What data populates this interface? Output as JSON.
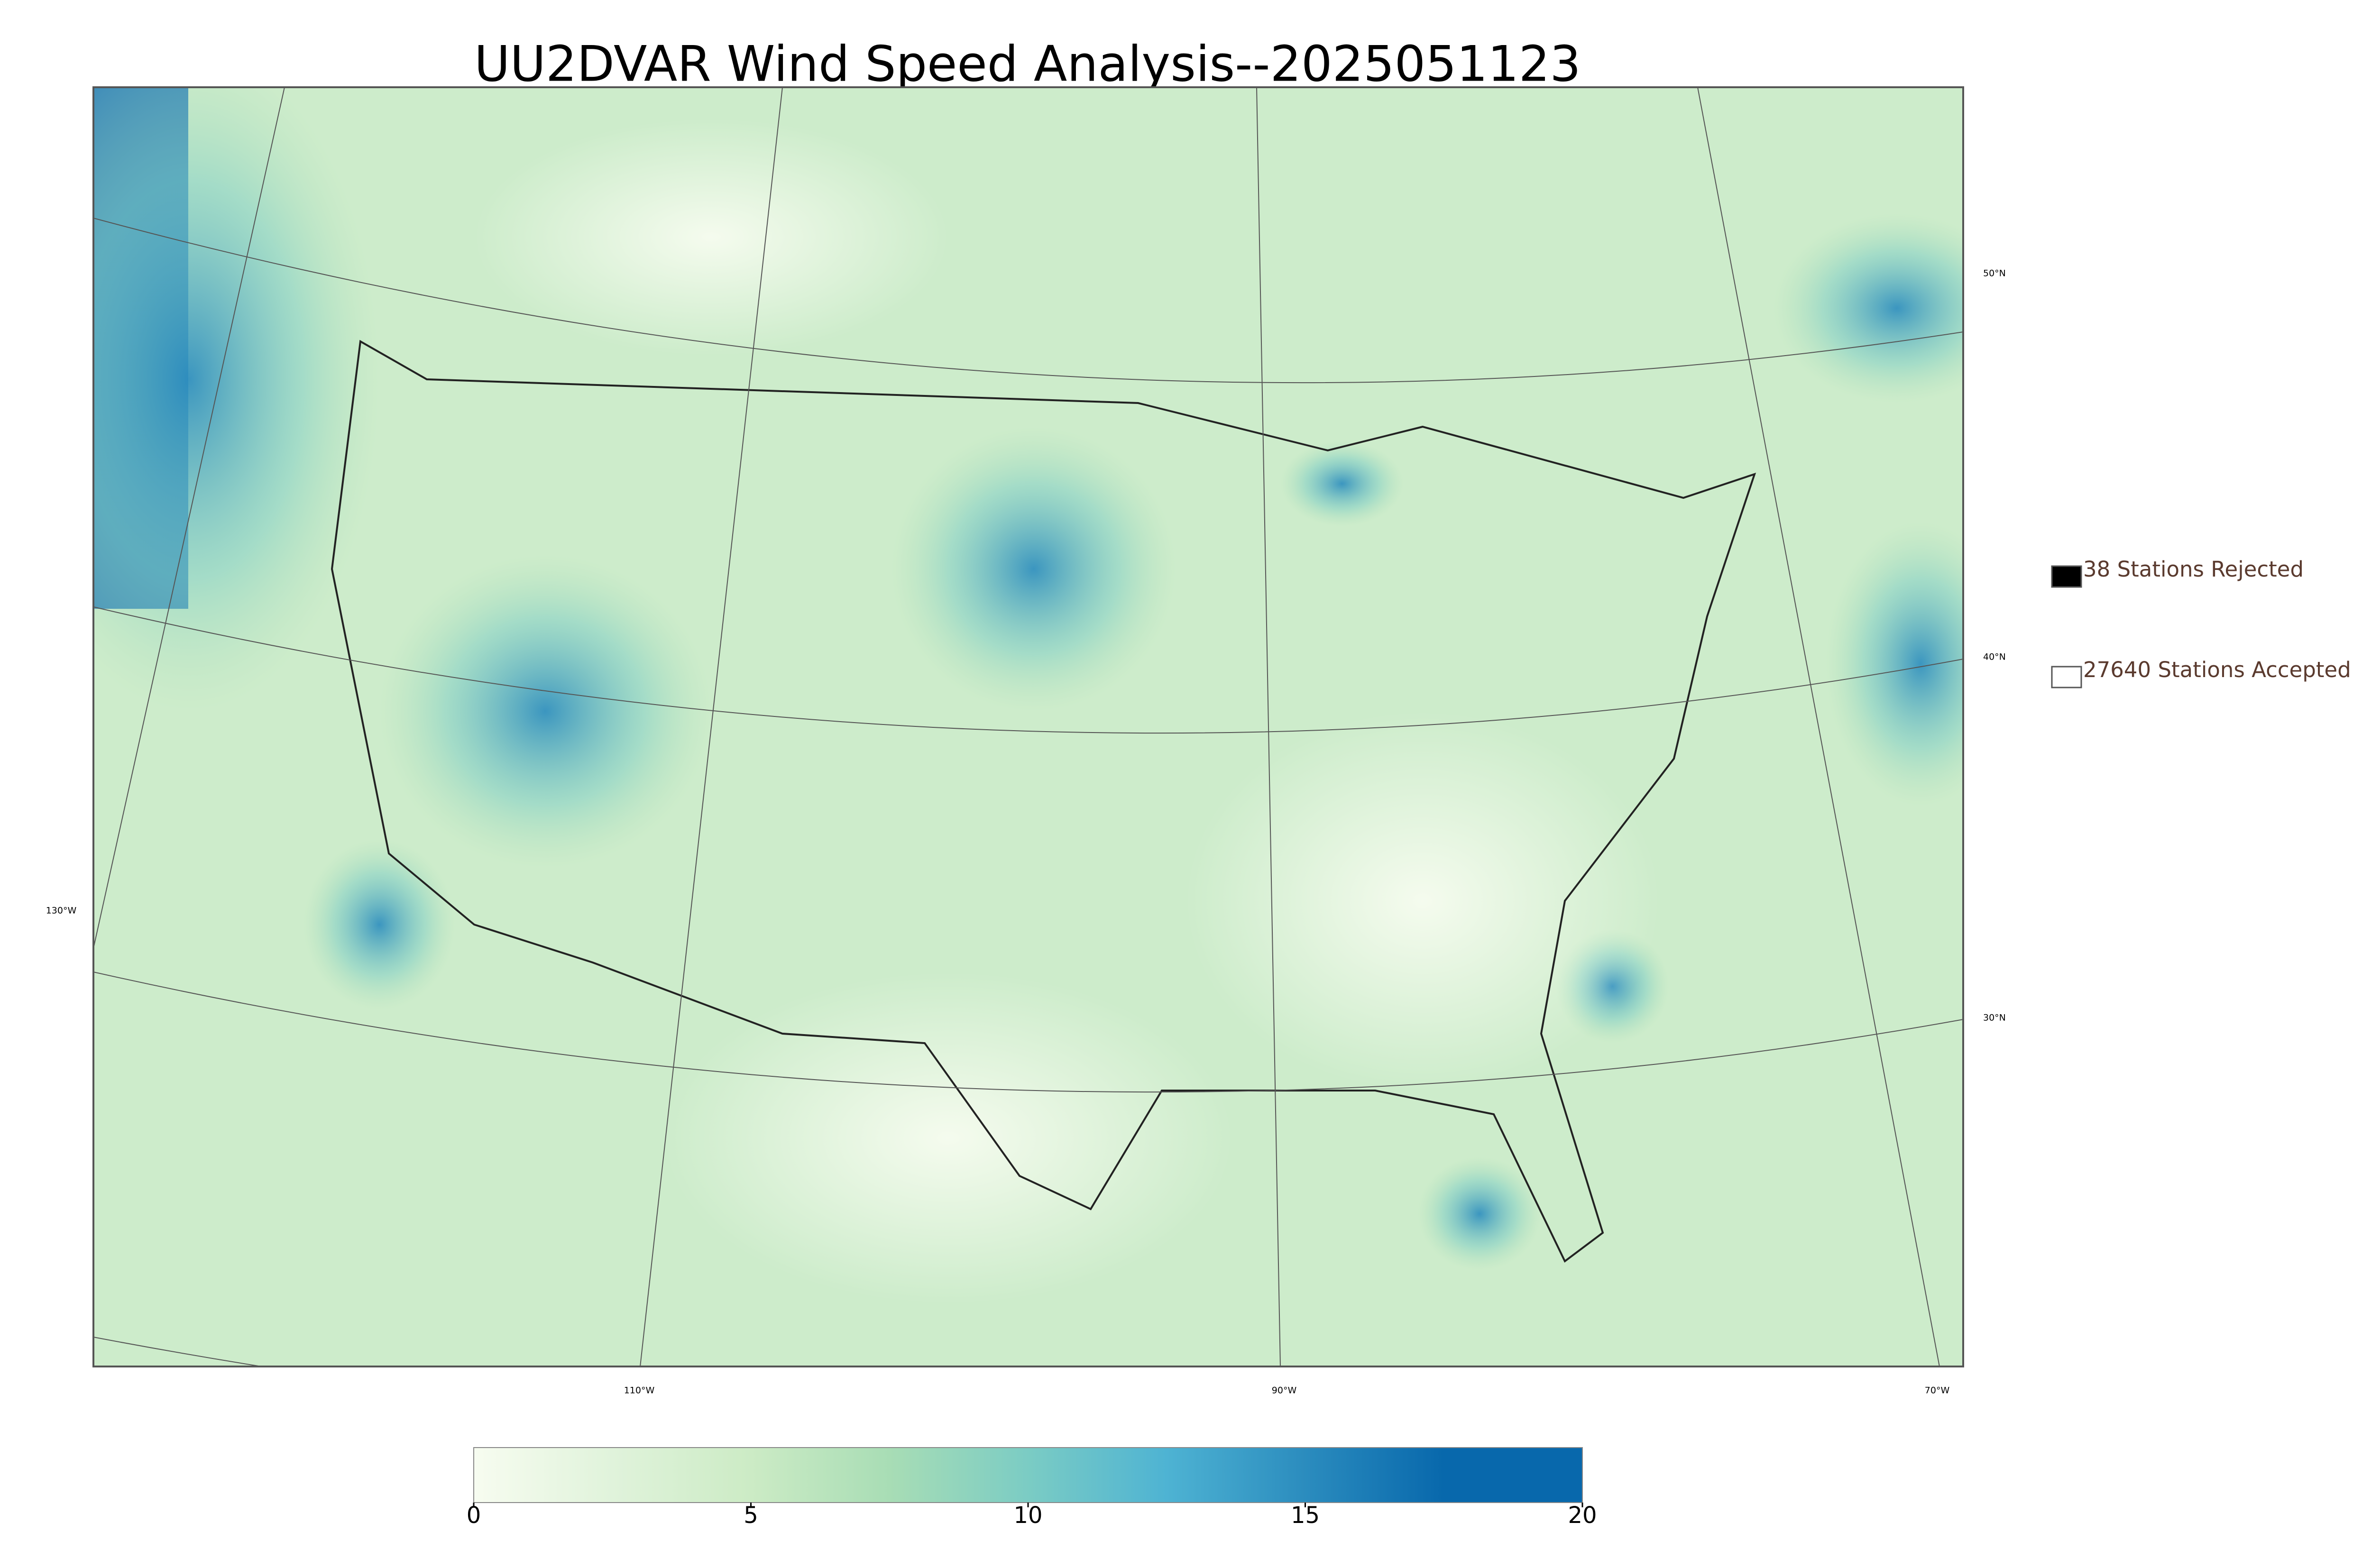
{
  "title": "UU2DVAR Wind Speed Analysis--2025051123",
  "legend": [
    {
      "label": "38 Stations Rejected",
      "fill": "#000000"
    },
    {
      "label": "27640 Stations Accepted",
      "fill": "#ffffff"
    }
  ],
  "lat_labels": [
    "50°N",
    "40°N",
    "30°N"
  ],
  "lon_labels": [
    "130°W",
    "110°W",
    "90°W",
    "70°W"
  ],
  "colorbar": {
    "lim": [
      0,
      20
    ],
    "ticks": [
      0,
      5,
      10,
      15,
      20
    ],
    "colors": [
      "#f7fcf0",
      "#e0f3db",
      "#ccebc5",
      "#a8ddb5",
      "#7bccc4",
      "#4eb3d3",
      "#2b8cbe",
      "#0868ac",
      "#0868ac"
    ]
  }
}
